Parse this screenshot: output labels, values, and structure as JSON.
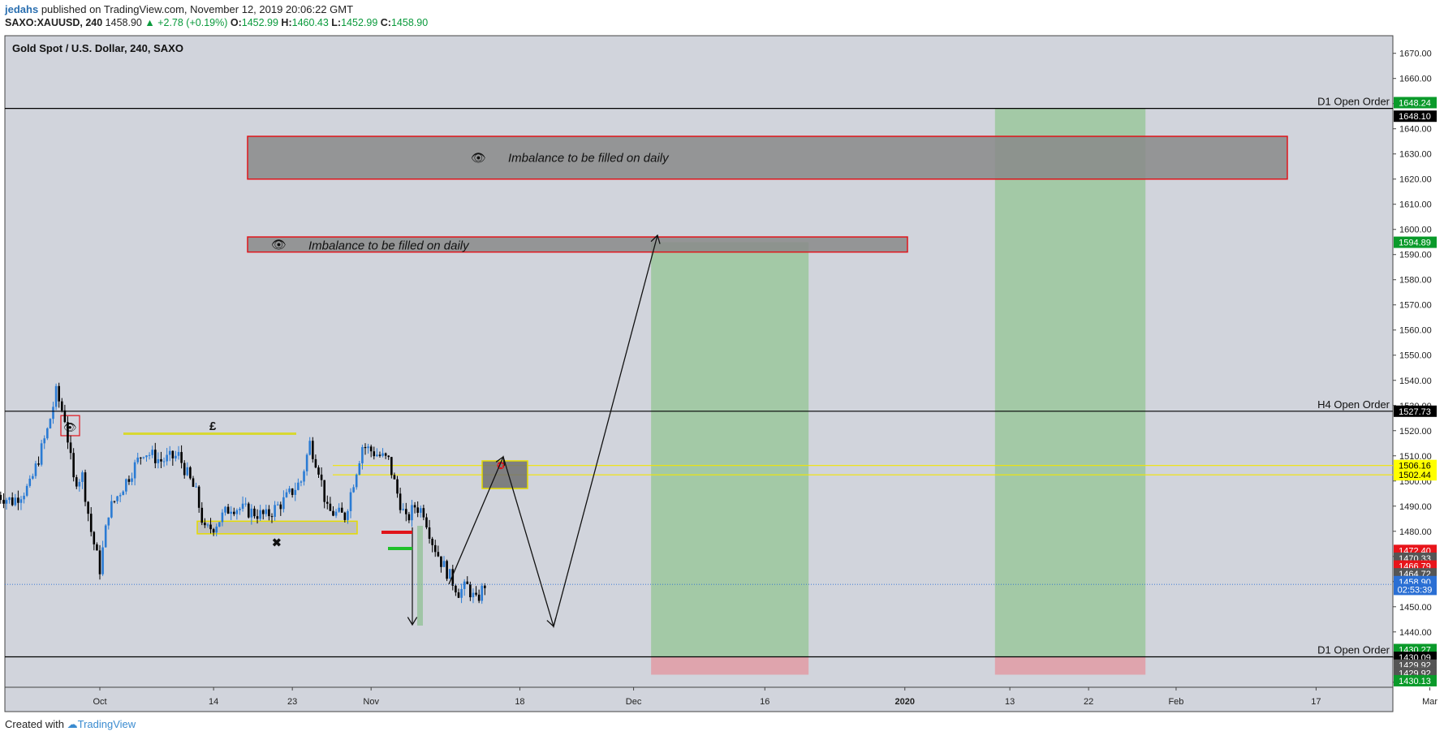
{
  "header": {
    "author": "jedahs",
    "published": "published on TradingView.com, November 12, 2019 20:06:22 GMT",
    "symbol_line": {
      "symbol": "SAXO:XAUUSD, 240",
      "last": "1458.90",
      "change": "+2.78 (+0.19%)",
      "o_label": "O:",
      "o": "1452.99",
      "h_label": "H:",
      "h": "1460.43",
      "l_label": "L:",
      "l": "1452.99",
      "c_label": "C:",
      "c": "1458.90"
    }
  },
  "footer": {
    "created_with": "Created with",
    "brand": "TradingView"
  },
  "colors": {
    "background": "#d1d4dc",
    "candle_up": "#2a7bd4",
    "candle_down": "#000000",
    "imbalance_fill": "#8a8a8a",
    "imbalance_border": "#e0141a",
    "target_fill": "#a3c9a6",
    "stop_fill": "#dfa4ad",
    "zone_yellow": "#ffff00"
  },
  "chart_data": {
    "type": "candlestick",
    "title": "Gold Spot / U.S. Dollar, 240, SAXO",
    "ylim": [
      1418,
      1677
    ],
    "y_ticks": [
      1670,
      1660,
      1650,
      1640,
      1630,
      1620,
      1610,
      1600,
      1590,
      1580,
      1570,
      1560,
      1550,
      1540,
      1530,
      1520,
      1510,
      1500,
      1490,
      1480,
      1470,
      1460,
      1450,
      1440,
      1430,
      1420
    ],
    "y_tick_labels": [
      "1670.00",
      "1660.00",
      "1650.00",
      "1640.00",
      "1630.00",
      "1620.00",
      "1610.00",
      "1600.00",
      "1590.00",
      "1580.00",
      "1570.00",
      "1560.00",
      "1550.00",
      "1540.00",
      "1530.00",
      "1520.00",
      "1510.00",
      "1500.00",
      "1490.00",
      "1480.00",
      "1470.00",
      "1460.00",
      "1450.00",
      "1440.00",
      "1430.00",
      "1420.00"
    ],
    "x_ticks": [
      {
        "label": "Oct",
        "day": 0
      },
      {
        "label": "14",
        "day": 13
      },
      {
        "label": "23",
        "day": 22
      },
      {
        "label": "Nov",
        "day": 31
      },
      {
        "label": "18",
        "day": 48
      },
      {
        "label": "Dec",
        "day": 61
      },
      {
        "label": "16",
        "day": 76
      },
      {
        "label": "2020",
        "day": 92,
        "bold": true
      },
      {
        "label": "13",
        "day": 104
      },
      {
        "label": "22",
        "day": 113
      },
      {
        "label": "Feb",
        "day": 123
      },
      {
        "label": "17",
        "day": 139
      },
      {
        "label": "Mar",
        "day": 152
      }
    ],
    "price_path_approx": [
      [
        -12,
        1495
      ],
      [
        -10,
        1492
      ],
      [
        -8,
        1498
      ],
      [
        -6,
        1520
      ],
      [
        -5,
        1535
      ],
      [
        -4,
        1525
      ],
      [
        -3,
        1500
      ],
      [
        -2,
        1502
      ],
      [
        -1,
        1480
      ],
      [
        0,
        1465
      ],
      [
        1,
        1488
      ],
      [
        3,
        1500
      ],
      [
        5,
        1512
      ],
      [
        7,
        1508
      ],
      [
        9,
        1510
      ],
      [
        11,
        1495
      ],
      [
        12,
        1480
      ],
      [
        13,
        1482
      ],
      [
        15,
        1490
      ],
      [
        17,
        1488
      ],
      [
        19,
        1486
      ],
      [
        21,
        1492
      ],
      [
        23,
        1500
      ],
      [
        24,
        1515
      ],
      [
        25,
        1505
      ],
      [
        26,
        1488
      ],
      [
        28,
        1486
      ],
      [
        29,
        1500
      ],
      [
        30,
        1514
      ],
      [
        31,
        1512
      ],
      [
        33,
        1508
      ],
      [
        34,
        1495
      ],
      [
        35,
        1484
      ],
      [
        36,
        1490
      ],
      [
        37,
        1488
      ],
      [
        38,
        1476
      ],
      [
        39,
        1468
      ],
      [
        40,
        1462
      ],
      [
        41,
        1456
      ],
      [
        42,
        1458
      ],
      [
        43,
        1452
      ],
      [
        44,
        1458.9
      ]
    ],
    "horizontal_lines": [
      {
        "label": "D1 Open Order",
        "price": 1648.1,
        "tag": "1648.10"
      },
      {
        "label": "H4 Open Order",
        "price": 1527.73,
        "tag": "1527.73"
      },
      {
        "label": "D1 Open Order",
        "price": 1430.09,
        "tag": "1430.09"
      }
    ],
    "zones": {
      "imbalance_daily_1": {
        "text": "Imbalance to be filled on daily",
        "top": 1637,
        "bottom": 1620,
        "day_start": 15,
        "day_end": 166
      },
      "imbalance_daily_2": {
        "text": "Imbalance to be filled on daily",
        "top": 1597,
        "bottom": 1591,
        "day_start": 15,
        "day_end": 85
      },
      "yellow_supply": {
        "top": 1506.16,
        "bottom": 1502.44
      }
    },
    "price_tags": [
      {
        "text": "1648.24",
        "price": 1650.4,
        "bg": "#0a9a2a",
        "fg": "#ffffff"
      },
      {
        "text": "1648.10",
        "price": 1645.0,
        "bg": "#000000",
        "fg": "#ffffff"
      },
      {
        "text": "1594.89",
        "price": 1594.89,
        "bg": "#0a9a2a",
        "fg": "#ffffff"
      },
      {
        "text": "1527.73",
        "price": 1527.73,
        "bg": "#000000",
        "fg": "#ffffff"
      },
      {
        "text": "1506.16",
        "price": 1506.16,
        "bg": "#ffff00",
        "fg": "#000000"
      },
      {
        "text": "1502.44",
        "price": 1502.44,
        "bg": "#ffff00",
        "fg": "#000000"
      },
      {
        "text": "1472.40",
        "price": 1472.4,
        "bg": "#e8141a",
        "fg": "#ffffff"
      },
      {
        "text": "1470.33",
        "price": 1469.3,
        "bg": "#555555",
        "fg": "#ffffff"
      },
      {
        "text": "1466.79",
        "price": 1466.2,
        "bg": "#e8141a",
        "fg": "#ffffff"
      },
      {
        "text": "1464.72",
        "price": 1463.1,
        "bg": "#555555",
        "fg": "#ffffff"
      },
      {
        "text": "1458.90",
        "price": 1460.0,
        "bg": "#2a6fd4",
        "fg": "#ffffff"
      },
      {
        "text": "02:53:39",
        "price": 1456.9,
        "bg": "#2a6fd4",
        "fg": "#ffffff"
      },
      {
        "text": "1430.27",
        "price": 1433.0,
        "bg": "#0a9a2a",
        "fg": "#ffffff"
      },
      {
        "text": "1430.09",
        "price": 1429.9,
        "bg": "#000000",
        "fg": "#ffffff"
      },
      {
        "text": "1429.92",
        "price": 1426.8,
        "bg": "#555555",
        "fg": "#ffffff"
      },
      {
        "text": "1429.92",
        "price": 1423.7,
        "bg": "#555555",
        "fg": "#ffffff"
      },
      {
        "text": "1430.13",
        "price": 1420.6,
        "bg": "#0a9a2a",
        "fg": "#ffffff"
      }
    ]
  }
}
